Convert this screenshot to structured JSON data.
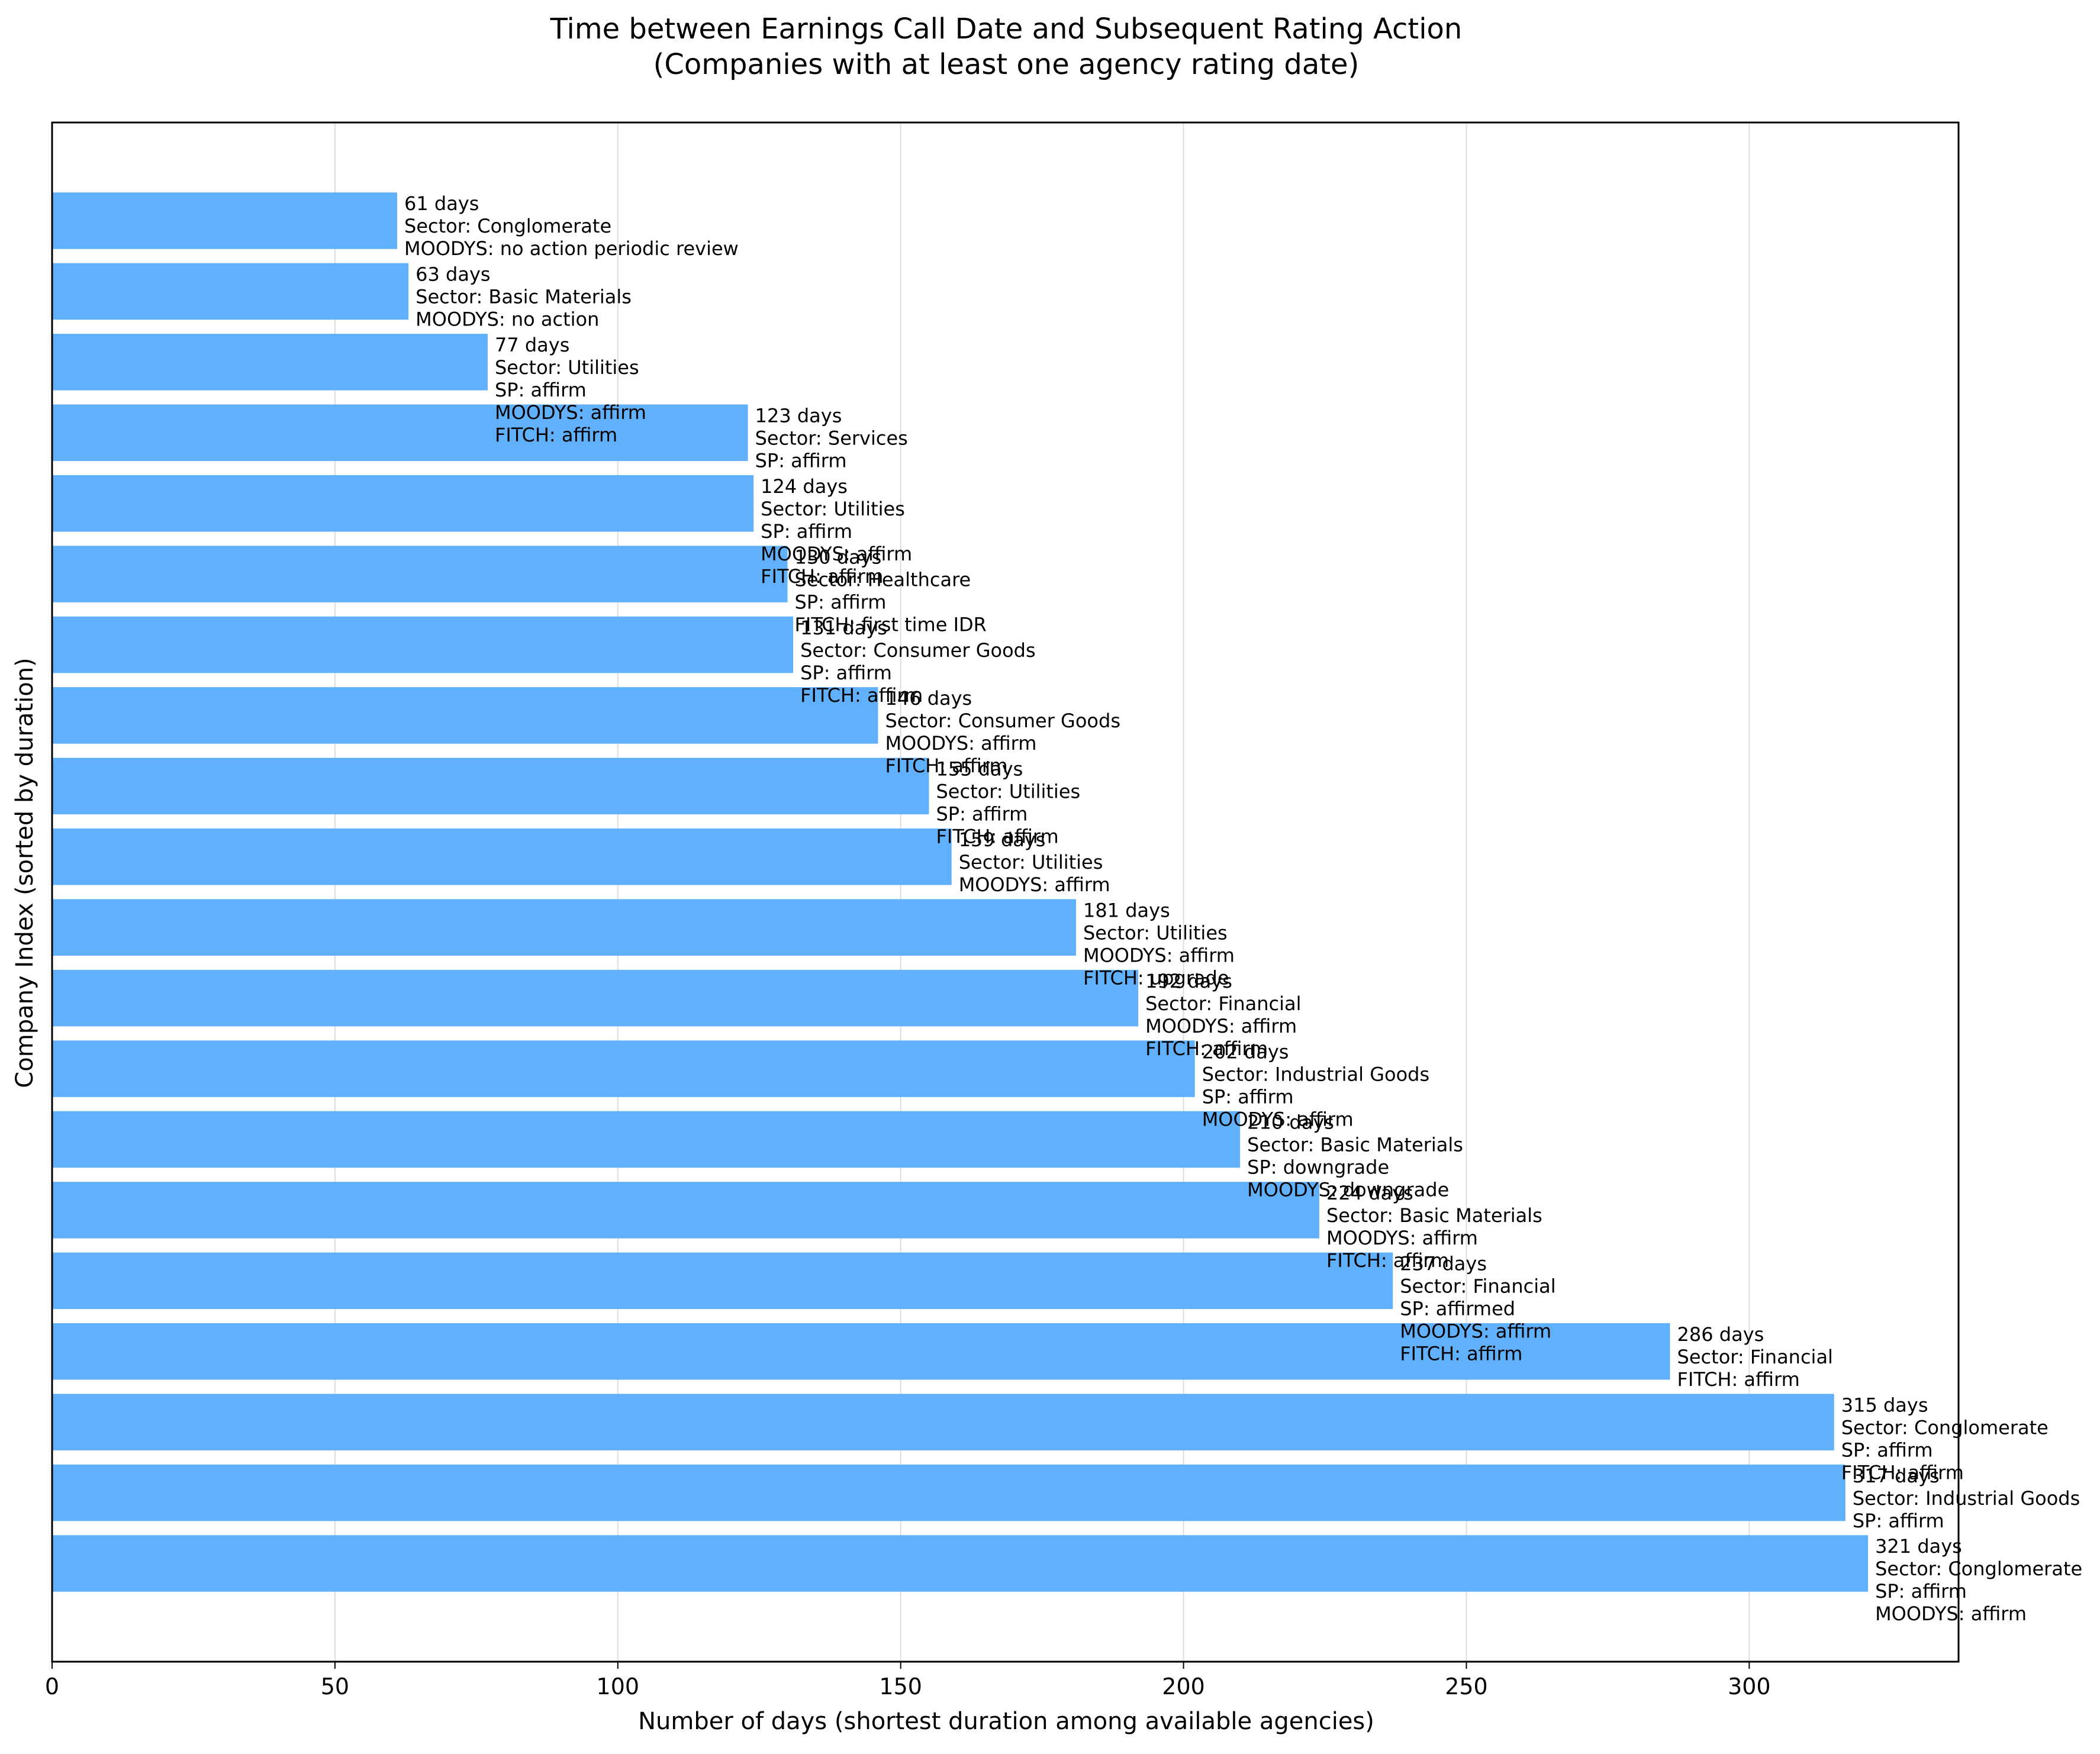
{
  "chart_data": {
    "type": "bar",
    "orientation": "horizontal",
    "title": "Time between Earnings Call Date and Subsequent Rating Action",
    "subtitle": "(Companies with at least one agency rating date)",
    "xlabel": "Number of days (shortest duration among available agencies)",
    "ylabel": "Company Index (sorted by duration)",
    "xlim": [
      0,
      337
    ],
    "xticks": [
      "0",
      "50",
      "100",
      "150",
      "200",
      "250",
      "300"
    ],
    "grid": "vertical",
    "bar_color": "#61b0fb",
    "values": [
      61,
      63,
      77,
      123,
      124,
      130,
      131,
      146,
      155,
      159,
      181,
      192,
      202,
      210,
      224,
      237,
      286,
      315,
      317,
      321
    ],
    "annotations": [
      [
        "61 days",
        "Sector: Conglomerate",
        "MOODYS: no action periodic review"
      ],
      [
        "63 days",
        "Sector: Basic Materials",
        "MOODYS: no action"
      ],
      [
        "77 days",
        "Sector: Utilities",
        "SP: affirm",
        "MOODYS: affirm",
        "FITCH: affirm"
      ],
      [
        "123 days",
        "Sector: Services",
        "SP: affirm"
      ],
      [
        "124 days",
        "Sector: Utilities",
        "SP: affirm",
        "MOODYS: affirm",
        "FITCH: affirm"
      ],
      [
        "130 days",
        "Sector: Healthcare",
        "SP: affirm",
        "FITCH: first time IDR"
      ],
      [
        "131 days",
        "Sector: Consumer Goods",
        "SP: affirm",
        "FITCH: affirm"
      ],
      [
        "146 days",
        "Sector: Consumer Goods",
        "MOODYS: affirm",
        "FITCH: affirm"
      ],
      [
        "155 days",
        "Sector: Utilities",
        "SP: affirm",
        "FITCH: affirm"
      ],
      [
        "159 days",
        "Sector: Utilities",
        "MOODYS: affirm"
      ],
      [
        "181 days",
        "Sector: Utilities",
        "MOODYS: affirm",
        "FITCH: upgrade"
      ],
      [
        "192 days",
        "Sector: Financial",
        "MOODYS: affirm",
        "FITCH: affirm"
      ],
      [
        "202 days",
        "Sector: Industrial Goods",
        "SP: affirm",
        "MOODYS: affirm"
      ],
      [
        "210 days",
        "Sector: Basic Materials",
        "SP: downgrade",
        "MOODYS: downgrade"
      ],
      [
        "224 days",
        "Sector: Basic Materials",
        "MOODYS: affirm",
        "FITCH: affirm"
      ],
      [
        "237 days",
        "Sector: Financial",
        "SP: affirmed",
        "MOODYS: affirm",
        "FITCH: affirm"
      ],
      [
        "286 days",
        "Sector: Financial",
        "FITCH: affirm"
      ],
      [
        "315 days",
        "Sector: Conglomerate",
        "SP: affirm",
        "FITCH: affirm"
      ],
      [
        "317 days",
        "Sector: Industrial Goods",
        "SP: affirm"
      ],
      [
        "321 days",
        "Sector: Conglomerate",
        "SP: affirm",
        "MOODYS: affirm"
      ]
    ]
  }
}
